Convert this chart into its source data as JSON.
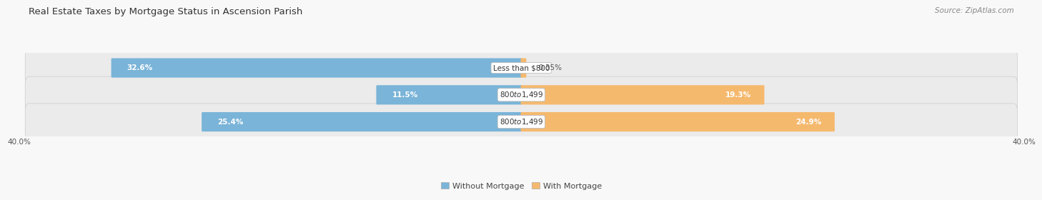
{
  "title": "Real Estate Taxes by Mortgage Status in Ascension Parish",
  "source": "Source: ZipAtlas.com",
  "rows": [
    {
      "label": "Less than $800",
      "without_mortgage": 32.6,
      "with_mortgage": 0.35
    },
    {
      "label": "$800 to $1,499",
      "without_mortgage": 11.5,
      "with_mortgage": 19.3
    },
    {
      "label": "$800 to $1,499",
      "without_mortgage": 25.4,
      "with_mortgage": 24.9
    }
  ],
  "x_max": 40.0,
  "x_min": -40.0,
  "color_without": "#7ab4d8",
  "color_with": "#f5b96e",
  "bar_height": 0.62,
  "row_bg_color": "#eeeeee",
  "title_fontsize": 9.5,
  "source_fontsize": 7.5,
  "label_fontsize": 7.5,
  "value_fontsize": 7.5,
  "tick_fontsize": 7.5,
  "legend_fontsize": 8
}
